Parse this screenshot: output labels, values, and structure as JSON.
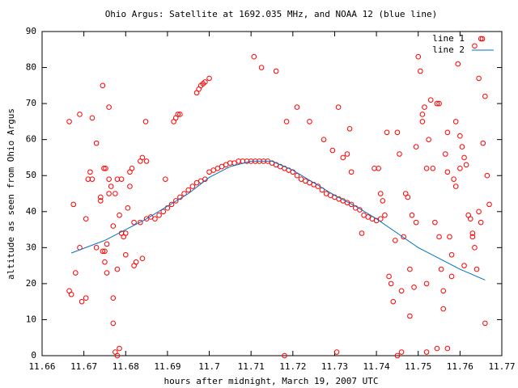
{
  "chart_data": {
    "type": "scatter",
    "title": "Ohio Argus: Satellite at 1692.035 MHz, and NOAA 12 (blue line)",
    "xlabel": "hours after midnight, March 19, 2007 UTC",
    "ylabel": "altitude as seen from Ohio Argus",
    "xlim": [
      11.66,
      11.77
    ],
    "ylim": [
      0,
      90
    ],
    "xticks": [
      11.66,
      11.67,
      11.68,
      11.69,
      11.7,
      11.71,
      11.72,
      11.73,
      11.74,
      11.75,
      11.76,
      11.77
    ],
    "yticks": [
      0,
      10,
      20,
      30,
      40,
      50,
      60,
      70,
      80,
      90
    ],
    "grid": false,
    "legend": "top-right",
    "series": [
      {
        "name": "line 1",
        "color": "#ff0000",
        "style": "points",
        "x": [
          11.6665,
          11.667,
          11.6665,
          11.6675,
          11.668,
          11.669,
          11.669,
          11.6695,
          11.6705,
          11.6705,
          11.671,
          11.6715,
          11.672,
          11.672,
          11.673,
          11.673,
          11.674,
          11.674,
          11.675,
          11.675,
          11.6755,
          11.676,
          11.676,
          11.677,
          11.677,
          11.6775,
          11.678,
          11.678,
          11.6745,
          11.6745,
          11.6748,
          11.6755,
          11.6752,
          11.677,
          11.676,
          11.6765,
          11.6775,
          11.678,
          11.6785,
          11.679,
          11.679,
          11.6785,
          11.6795,
          11.68,
          11.68,
          11.6805,
          11.681,
          11.681,
          11.6815,
          11.682,
          11.6825,
          11.682,
          11.6835,
          11.684,
          11.684,
          11.6835,
          11.6848,
          11.685,
          11.685,
          11.686,
          11.687,
          11.688,
          11.689,
          11.69,
          11.691,
          11.692,
          11.693,
          11.694,
          11.695,
          11.696,
          11.697,
          11.698,
          11.699,
          11.7,
          11.701,
          11.702,
          11.703,
          11.704,
          11.705,
          11.706,
          11.707,
          11.708,
          11.709,
          11.71,
          11.711,
          11.712,
          11.713,
          11.714,
          11.715,
          11.716,
          11.717,
          11.718,
          11.719,
          11.72,
          11.721,
          11.722,
          11.723,
          11.724,
          11.725,
          11.726,
          11.727,
          11.728,
          11.729,
          11.73,
          11.731,
          11.732,
          11.733,
          11.734,
          11.735,
          11.736,
          11.737,
          11.738,
          11.739,
          11.74,
          11.741,
          11.742,
          11.6915,
          11.692,
          11.6925,
          11.693,
          11.6895,
          11.697,
          11.6975,
          11.698,
          11.6985,
          11.699,
          11.7,
          11.7107,
          11.7125,
          11.716,
          11.7185,
          11.718,
          11.721,
          11.724,
          11.7274,
          11.7295,
          11.7309,
          11.7305,
          11.732,
          11.7336,
          11.733,
          11.734,
          11.7365,
          11.7395,
          11.7405,
          11.741,
          11.7415,
          11.7425,
          11.743,
          11.7435,
          11.744,
          11.7445,
          11.745,
          11.7455,
          11.745,
          11.746,
          11.746,
          11.7465,
          11.747,
          11.7475,
          11.748,
          11.748,
          11.7485,
          11.749,
          11.7495,
          11.7495,
          11.75,
          11.7505,
          11.751,
          11.751,
          11.7515,
          11.752,
          11.752,
          11.752,
          11.7525,
          11.753,
          11.7535,
          11.754,
          11.7545,
          11.7545,
          11.755,
          11.755,
          11.7555,
          11.756,
          11.756,
          11.7565,
          11.757,
          11.757,
          11.757,
          11.7575,
          11.758,
          11.758,
          11.7585,
          11.759,
          11.759,
          11.7595,
          11.76,
          11.76,
          11.7605,
          11.761,
          11.761,
          11.7615,
          11.762,
          11.7625,
          11.763,
          11.7635,
          11.763,
          11.7635,
          11.764,
          11.7645,
          11.7645,
          11.765,
          11.765,
          11.7655,
          11.766,
          11.766,
          11.7665,
          11.767
        ],
        "values": [
          65,
          17,
          18,
          42,
          23,
          67,
          30,
          15,
          38,
          16,
          49,
          51,
          66,
          49,
          30,
          59,
          44,
          43,
          29,
          26,
          31,
          45,
          49,
          16,
          9,
          1,
          0,
          49,
          75,
          29,
          52,
          23,
          52,
          36,
          69,
          47,
          45,
          24,
          39,
          49,
          34,
          2,
          33,
          28,
          34,
          41,
          47,
          51,
          52,
          25,
          26,
          37,
          54,
          55,
          27,
          37,
          65,
          54,
          38,
          38.5,
          38,
          39,
          40,
          41,
          42,
          43,
          44,
          45,
          46,
          47,
          48,
          48.5,
          49,
          51,
          51.5,
          52,
          52.5,
          53,
          53.5,
          53.5,
          54,
          54,
          54,
          54,
          54,
          54,
          54,
          54,
          53.5,
          53,
          52.5,
          52,
          51.5,
          51,
          50,
          49,
          48.5,
          48,
          47.5,
          47,
          46,
          45,
          44.5,
          44,
          43.5,
          43,
          42.5,
          42,
          41,
          40.5,
          39,
          38.5,
          38,
          37.5,
          38,
          39,
          65,
          66,
          67,
          67,
          49,
          73,
          74,
          75,
          75.5,
          76,
          77,
          83,
          80,
          79,
          65,
          0,
          69,
          65,
          60,
          57,
          69,
          1,
          55,
          63,
          56,
          51,
          34,
          52,
          52,
          45,
          43,
          62,
          22,
          20,
          15,
          32,
          62,
          56,
          0,
          1,
          18,
          33,
          45,
          44,
          24,
          11,
          39,
          19,
          58,
          37,
          83,
          79,
          67,
          65,
          69,
          52,
          20,
          1,
          60,
          71,
          52,
          37,
          70,
          2,
          70,
          33,
          24,
          18,
          13,
          56,
          51,
          62,
          2,
          33,
          22,
          28,
          49,
          65,
          47,
          81,
          52,
          61,
          58,
          55,
          25,
          53,
          39,
          38,
          34,
          30,
          33,
          86,
          24,
          77,
          40,
          88,
          37,
          59,
          9,
          72,
          50,
          42
        ]
      },
      {
        "name": "line 2",
        "color": "#0072bd",
        "style": "lines",
        "x": [
          11.667,
          11.675,
          11.685,
          11.695,
          11.7,
          11.705,
          11.71,
          11.715,
          11.72,
          11.725,
          11.73,
          11.735,
          11.74,
          11.745,
          11.75,
          11.755,
          11.76,
          11.766
        ],
        "values": [
          28.5,
          32,
          38,
          45,
          49.5,
          52.5,
          54,
          54,
          51.5,
          48,
          44.5,
          41.5,
          38,
          34,
          30,
          27,
          24,
          21
        ]
      }
    ]
  }
}
